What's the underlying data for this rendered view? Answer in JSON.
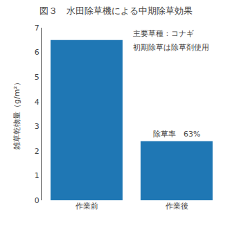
{
  "chart_data": {
    "type": "bar",
    "title": "図３　水田除草機による中期除草効果",
    "categories": [
      "作業前",
      "作業後"
    ],
    "values": [
      6.5,
      2.4
    ],
    "ylabel": "雑草乾物量（g/m²）",
    "ylim": [
      0,
      7
    ],
    "yticks": [
      0,
      1,
      2,
      3,
      4,
      5,
      6,
      7
    ],
    "annotations": [
      "主要草種：コナギ",
      "初期除草は除草剤使用"
    ],
    "bar_label": "除草率　63%",
    "grid": false
  }
}
